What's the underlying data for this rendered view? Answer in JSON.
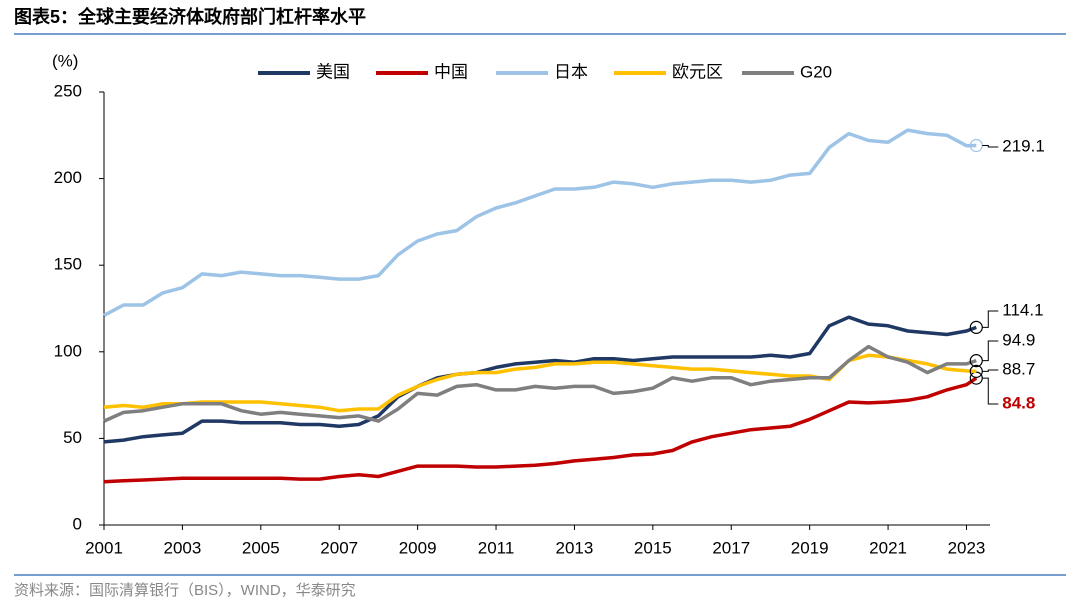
{
  "chart_data": {
    "type": "line",
    "title": "图表5：全球主要经济体政府部门杠杆率水平",
    "y_label": "(%)",
    "source": "资料来源：国际清算银行（BIS），WIND，华泰研究",
    "x": [
      2001,
      2001.5,
      2002,
      2002.5,
      2003,
      2003.5,
      2004,
      2004.5,
      2005,
      2005.5,
      2006,
      2006.5,
      2007,
      2007.5,
      2008,
      2008.5,
      2009,
      2009.5,
      2010,
      2010.5,
      2011,
      2011.5,
      2012,
      2012.5,
      2013,
      2013.5,
      2014,
      2014.5,
      2015,
      2015.5,
      2016,
      2016.5,
      2017,
      2017.5,
      2018,
      2018.5,
      2019,
      2019.5,
      2020,
      2020.5,
      2021,
      2021.5,
      2022,
      2022.5,
      2023,
      2023.25
    ],
    "xlim": [
      2001,
      2023.6
    ],
    "xticks": [
      2001,
      2003,
      2005,
      2007,
      2009,
      2011,
      2013,
      2015,
      2017,
      2019,
      2021,
      2023
    ],
    "ylim": [
      0,
      250
    ],
    "yticks": [
      0,
      50,
      100,
      150,
      200,
      250
    ],
    "series": [
      {
        "name": "美国",
        "color": "#1f3864",
        "values": [
          48,
          49,
          51,
          52,
          53,
          60,
          60,
          59,
          59,
          59,
          58,
          58,
          57,
          58,
          63,
          74,
          80,
          85,
          87,
          88,
          91,
          93,
          94,
          95,
          94,
          96,
          96,
          95,
          96,
          97,
          97,
          97,
          97,
          97,
          98,
          97,
          99,
          115,
          120,
          116,
          115,
          112,
          111,
          110,
          112,
          114.1
        ]
      },
      {
        "name": "中国",
        "color": "#c00000",
        "values": [
          25,
          25.5,
          26,
          26.5,
          27,
          27,
          27,
          27,
          27,
          27,
          26.5,
          26.5,
          28,
          29,
          28,
          31,
          34,
          34,
          34,
          33.5,
          33.5,
          34,
          34.5,
          35.5,
          37,
          38,
          39,
          40.5,
          41,
          43,
          48,
          51,
          53,
          55,
          56,
          57,
          61,
          66,
          71,
          70.5,
          71,
          72,
          74,
          78,
          81,
          84.8
        ]
      },
      {
        "name": "日本",
        "color": "#9dc3e6",
        "values": [
          121,
          127,
          127,
          134,
          137,
          145,
          144,
          146,
          145,
          144,
          144,
          143,
          142,
          142,
          144,
          156,
          164,
          168,
          170,
          178,
          183,
          186,
          190,
          194,
          194,
          195,
          198,
          197,
          195,
          197,
          198,
          199,
          199,
          198,
          199,
          202,
          203,
          218,
          226,
          222,
          221,
          228,
          226,
          225,
          219,
          219.1
        ]
      },
      {
        "name": "欧元区",
        "color": "#ffc000",
        "values": [
          68,
          69,
          68,
          70,
          70,
          71,
          71,
          71,
          71,
          70,
          69,
          68,
          66,
          67,
          67,
          75,
          80,
          84,
          87,
          88,
          88,
          90,
          91,
          93,
          93,
          94,
          94,
          93,
          92,
          91,
          90,
          90,
          89,
          88,
          87,
          86,
          86,
          84,
          95,
          98,
          97,
          95,
          93,
          90,
          89,
          88.7
        ]
      },
      {
        "name": "G20",
        "color": "#7f7f7f",
        "values": [
          60,
          65,
          66,
          68,
          70,
          70,
          70,
          66,
          64,
          65,
          64,
          63,
          62,
          63,
          60,
          67,
          76,
          75,
          80,
          81,
          78,
          78,
          80,
          79,
          80,
          80,
          76,
          77,
          79,
          85,
          83,
          85,
          85,
          81,
          83,
          84,
          85,
          85,
          95,
          103,
          97,
          94,
          88,
          93,
          93,
          94.9
        ]
      }
    ]
  }
}
